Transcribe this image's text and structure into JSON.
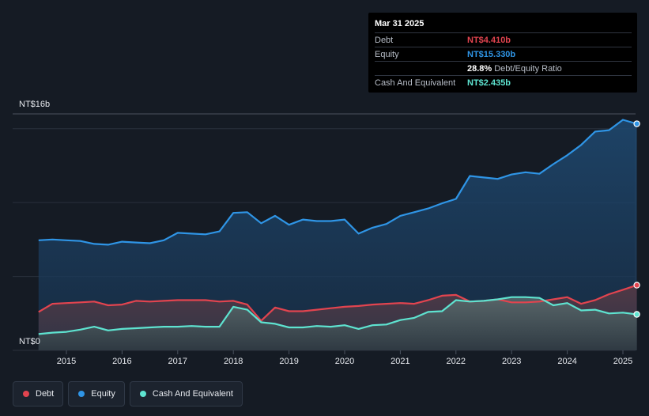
{
  "tooltip": {
    "date": "Mar 31 2025",
    "debt_label": "Debt",
    "debt_value": "NT$4.410b",
    "equity_label": "Equity",
    "equity_value": "NT$15.330b",
    "ratio_value": "28.8%",
    "ratio_label": "Debt/Equity Ratio",
    "cash_label": "Cash And Equivalent",
    "cash_value": "NT$2.435b"
  },
  "legend": [
    {
      "label": "Debt",
      "color": "#e2444f"
    },
    {
      "label": "Equity",
      "color": "#2f95e6"
    },
    {
      "label": "Cash And Equivalent",
      "color": "#5ee3d0"
    }
  ],
  "chart_data": {
    "type": "area",
    "y_top_label": "NT$16b",
    "y_bottom_label": "NT$0",
    "ylim": [
      0,
      16
    ],
    "xlim": [
      2014.5,
      2025.25
    ],
    "x_ticks": [
      "2015",
      "2016",
      "2017",
      "2018",
      "2019",
      "2020",
      "2021",
      "2022",
      "2023",
      "2024",
      "2025"
    ],
    "colors": {
      "debt": "#e2444f",
      "equity": "#2f95e6",
      "cash": "#5ee3d0"
    },
    "series": [
      {
        "name": "Equity",
        "x": [
          2014.5,
          2014.75,
          2015.0,
          2015.25,
          2015.5,
          2015.75,
          2016.0,
          2016.25,
          2016.5,
          2016.75,
          2017.0,
          2017.25,
          2017.5,
          2017.75,
          2018.0,
          2018.25,
          2018.5,
          2018.75,
          2019.0,
          2019.25,
          2019.5,
          2019.75,
          2020.0,
          2020.25,
          2020.5,
          2020.75,
          2021.0,
          2021.25,
          2021.5,
          2021.75,
          2022.0,
          2022.25,
          2022.5,
          2022.75,
          2023.0,
          2023.25,
          2023.5,
          2023.75,
          2024.0,
          2024.25,
          2024.5,
          2024.75,
          2025.0,
          2025.25
        ],
        "values": [
          7.45,
          7.5,
          7.45,
          7.4,
          7.2,
          7.15,
          7.35,
          7.3,
          7.25,
          7.45,
          7.95,
          7.9,
          7.85,
          8.05,
          9.3,
          9.35,
          8.6,
          9.1,
          8.5,
          8.85,
          8.75,
          8.75,
          8.85,
          7.9,
          8.3,
          8.55,
          9.1,
          9.35,
          9.6,
          9.95,
          10.25,
          11.8,
          11.7,
          11.6,
          11.9,
          12.05,
          11.95,
          12.6,
          13.2,
          13.9,
          14.8,
          14.9,
          15.6,
          15.33
        ]
      },
      {
        "name": "Debt",
        "x": [
          2014.5,
          2014.75,
          2015.0,
          2015.25,
          2015.5,
          2015.75,
          2016.0,
          2016.25,
          2016.5,
          2016.75,
          2017.0,
          2017.25,
          2017.5,
          2017.75,
          2018.0,
          2018.25,
          2018.5,
          2018.75,
          2019.0,
          2019.25,
          2019.5,
          2019.75,
          2020.0,
          2020.25,
          2020.5,
          2020.75,
          2021.0,
          2021.25,
          2021.5,
          2021.75,
          2022.0,
          2022.25,
          2022.5,
          2022.75,
          2023.0,
          2023.25,
          2023.5,
          2023.75,
          2024.0,
          2024.25,
          2024.5,
          2024.75,
          2025.0,
          2025.25
        ],
        "values": [
          2.6,
          3.15,
          3.2,
          3.25,
          3.3,
          3.05,
          3.1,
          3.35,
          3.3,
          3.35,
          3.4,
          3.4,
          3.4,
          3.3,
          3.35,
          3.1,
          2.0,
          2.9,
          2.65,
          2.65,
          2.75,
          2.85,
          2.95,
          3.0,
          3.1,
          3.15,
          3.2,
          3.15,
          3.4,
          3.7,
          3.75,
          3.3,
          3.35,
          3.45,
          3.25,
          3.25,
          3.3,
          3.45,
          3.6,
          3.15,
          3.4,
          3.8,
          4.1,
          4.41
        ]
      },
      {
        "name": "Cash And Equivalent",
        "x": [
          2014.5,
          2014.75,
          2015.0,
          2015.25,
          2015.5,
          2015.75,
          2016.0,
          2016.25,
          2016.5,
          2016.75,
          2017.0,
          2017.25,
          2017.5,
          2017.75,
          2018.0,
          2018.25,
          2018.5,
          2018.75,
          2019.0,
          2019.25,
          2019.5,
          2019.75,
          2020.0,
          2020.25,
          2020.5,
          2020.75,
          2021.0,
          2021.25,
          2021.5,
          2021.75,
          2022.0,
          2022.25,
          2022.5,
          2022.75,
          2023.0,
          2023.25,
          2023.5,
          2023.75,
          2024.0,
          2024.25,
          2024.5,
          2024.75,
          2025.0,
          2025.25
        ],
        "values": [
          1.1,
          1.2,
          1.25,
          1.4,
          1.6,
          1.35,
          1.45,
          1.5,
          1.55,
          1.6,
          1.6,
          1.65,
          1.6,
          1.6,
          2.95,
          2.75,
          1.9,
          1.8,
          1.55,
          1.55,
          1.65,
          1.6,
          1.7,
          1.45,
          1.7,
          1.75,
          2.05,
          2.2,
          2.6,
          2.65,
          3.4,
          3.3,
          3.35,
          3.45,
          3.6,
          3.6,
          3.55,
          3.05,
          3.2,
          2.7,
          2.75,
          2.5,
          2.55,
          2.435
        ]
      }
    ]
  }
}
